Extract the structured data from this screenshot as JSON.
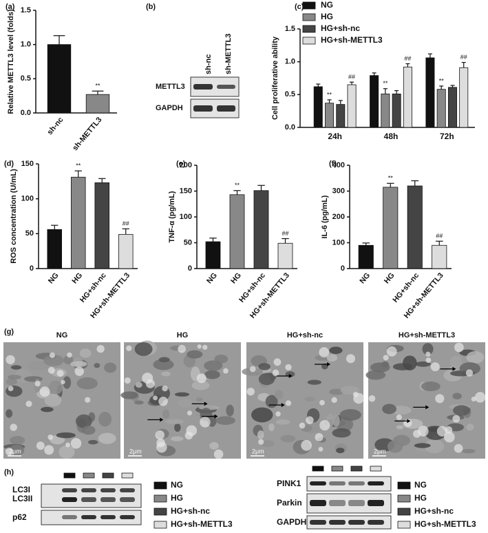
{
  "chart_data": [
    {
      "type": "bar",
      "panel": "(a)",
      "ylabel": "Relative METTL3 level (folds)",
      "categories": [
        "sh-nc",
        "sh-METTL3"
      ],
      "values": [
        1.0,
        0.27
      ],
      "errors": [
        0.13,
        0.05
      ],
      "colors": [
        "#111111",
        "#888888"
      ],
      "annotations": [
        null,
        "**"
      ],
      "ylim": [
        0,
        1.5
      ],
      "yticks": [
        {
          "value": 0,
          "label": "0.0"
        },
        0.5,
        {
          "value": 1,
          "label": "1.0"
        },
        1.5
      ]
    },
    {
      "type": "grouped-bar",
      "panel": "(c)",
      "ylabel": "Cell proliferative ability",
      "categories": [
        "24h",
        "48h",
        "72h"
      ],
      "series": [
        {
          "name": "NG",
          "color": "#111111",
          "values": [
            0.62,
            0.79,
            1.06
          ],
          "errors": [
            0.04,
            0.04,
            0.06
          ]
        },
        {
          "name": "HG",
          "color": "#888888",
          "values": [
            0.37,
            0.51,
            0.58
          ],
          "errors": [
            0.05,
            0.08,
            0.05
          ],
          "annotations": [
            "**",
            "**",
            "**"
          ]
        },
        {
          "name": "HG+sh-nc",
          "color": "#444444",
          "values": [
            0.35,
            0.51,
            0.61
          ],
          "errors": [
            0.06,
            0.05,
            0.03
          ]
        },
        {
          "name": "HG+sh-METTL3",
          "color": "#dddddd",
          "values": [
            0.65,
            0.92,
            0.91
          ],
          "errors": [
            0.04,
            0.05,
            0.08
          ],
          "annotations": [
            "##",
            "##",
            "##"
          ]
        }
      ],
      "legend": "upper left",
      "ylim": [
        0,
        1.5
      ],
      "yticks": [
        {
          "value": 0,
          "label": "0.0"
        },
        0.5,
        {
          "value": 1,
          "label": "1.0"
        },
        1.5
      ]
    },
    {
      "type": "bar",
      "panel": "(d)",
      "ylabel": "ROS concentration (U/mL)",
      "categories": [
        "NG",
        "HG",
        "HG+sh-nc",
        "HG+sh-METTL3"
      ],
      "values": [
        56,
        131,
        123,
        49
      ],
      "errors": [
        6,
        9,
        6,
        8
      ],
      "colors": [
        "#111111",
        "#888888",
        "#444444",
        "#dddddd"
      ],
      "annotations": [
        null,
        "**",
        null,
        "##"
      ],
      "ylim": [
        0,
        150
      ],
      "yticks": [
        0,
        50,
        100,
        150
      ]
    },
    {
      "type": "bar",
      "panel": "(e)",
      "ylabel": "TNF-α (pg/mL)",
      "categories": [
        "NG",
        "HG",
        "HG+sh-nc",
        "HG+sh-METTL3"
      ],
      "values": [
        52,
        143,
        151,
        49
      ],
      "errors": [
        7,
        8,
        10,
        9
      ],
      "colors": [
        "#111111",
        "#888888",
        "#444444",
        "#dddddd"
      ],
      "annotations": [
        null,
        "**",
        null,
        "##"
      ],
      "ylim": [
        0,
        200
      ],
      "yticks": [
        0,
        50,
        100,
        150,
        200
      ]
    },
    {
      "type": "bar",
      "panel": "(f)",
      "ylabel": "IL-6 (pg/mL)",
      "categories": [
        "NG",
        "HG",
        "HG+sh-nc",
        "HG+sh-METTL3"
      ],
      "values": [
        90,
        315,
        320,
        90
      ],
      "errors": [
        9,
        15,
        20,
        16
      ],
      "colors": [
        "#111111",
        "#888888",
        "#444444",
        "#dddddd"
      ],
      "annotations": [
        null,
        "**",
        null,
        "##"
      ],
      "ylim": [
        0,
        400
      ],
      "yticks": [
        0,
        100,
        200,
        300,
        400
      ]
    }
  ],
  "blot_b": {
    "panel": "(b)",
    "lanes": [
      "sh-nc",
      "sh-METTL3"
    ],
    "proteins": [
      "METTL3",
      "GAPDH"
    ]
  },
  "micrographs": {
    "panel": "(g)",
    "groups": [
      "NG",
      "HG",
      "HG+sh-nc",
      "HG+sh-METTL3"
    ],
    "scale_bar": "2μm"
  },
  "blot_h": {
    "panel": "(h)",
    "left_proteins": [
      "LC3I",
      "LC3II",
      "p62"
    ],
    "right_proteins": [
      "PINK1",
      "Parkin",
      "GAPDH"
    ],
    "legend": [
      {
        "name": "NG",
        "color": "#111111"
      },
      {
        "name": "HG",
        "color": "#888888"
      },
      {
        "name": "HG+sh-nc",
        "color": "#444444"
      },
      {
        "name": "HG+sh-METTL3",
        "color": "#dddddd"
      }
    ]
  }
}
